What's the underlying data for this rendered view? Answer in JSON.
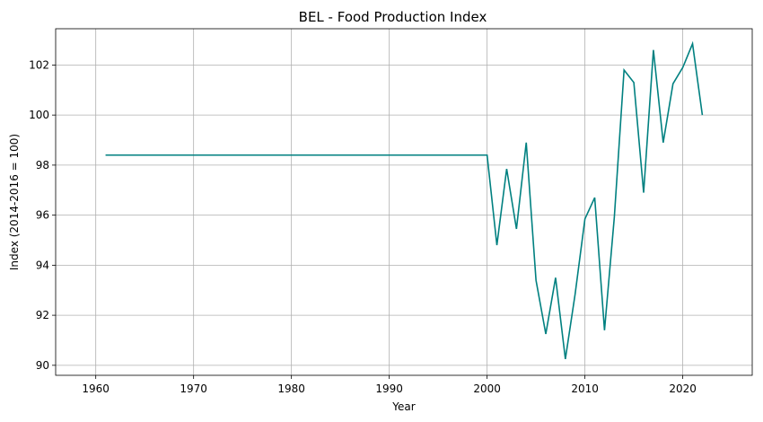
{
  "chart_data": {
    "type": "line",
    "title": "BEL - Food Production Index",
    "xlabel": "Year",
    "ylabel": "Index (2014-2016 = 100)",
    "xlim": [
      1955.9,
      2027.1
    ],
    "ylim": [
      89.6,
      103.45
    ],
    "xticks": [
      1960,
      1970,
      1980,
      1990,
      2000,
      2010,
      2020
    ],
    "yticks": [
      90,
      92,
      94,
      96,
      98,
      100,
      102
    ],
    "grid": true,
    "color": "#008080",
    "series": [
      {
        "x": [
          1961,
          1962,
          1963,
          1964,
          1965,
          1966,
          1967,
          1968,
          1969,
          1970,
          1971,
          1972,
          1973,
          1974,
          1975,
          1976,
          1977,
          1978,
          1979,
          1980,
          1981,
          1982,
          1983,
          1984,
          1985,
          1986,
          1987,
          1988,
          1989,
          1990,
          1991,
          1992,
          1993,
          1994,
          1995,
          1996,
          1997,
          1998,
          1999,
          2000,
          2001,
          2002,
          2003,
          2004,
          2005,
          2006,
          2007,
          2008,
          2009,
          2010,
          2011,
          2012,
          2013,
          2014,
          2015,
          2016,
          2017,
          2018,
          2019,
          2020,
          2021,
          2022
        ],
        "values": [
          98.4,
          98.4,
          98.4,
          98.4,
          98.4,
          98.4,
          98.4,
          98.4,
          98.4,
          98.4,
          98.4,
          98.4,
          98.4,
          98.4,
          98.4,
          98.4,
          98.4,
          98.4,
          98.4,
          98.4,
          98.4,
          98.4,
          98.4,
          98.4,
          98.4,
          98.4,
          98.4,
          98.4,
          98.4,
          98.4,
          98.4,
          98.4,
          98.4,
          98.4,
          98.4,
          98.4,
          98.4,
          98.4,
          98.4,
          98.4,
          94.8,
          97.85,
          95.45,
          98.9,
          93.4,
          91.25,
          93.5,
          90.25,
          92.85,
          95.85,
          96.7,
          91.4,
          95.9,
          101.8,
          101.3,
          96.9,
          102.6,
          98.9,
          101.25,
          101.9,
          102.85,
          100.0
        ]
      }
    ]
  }
}
